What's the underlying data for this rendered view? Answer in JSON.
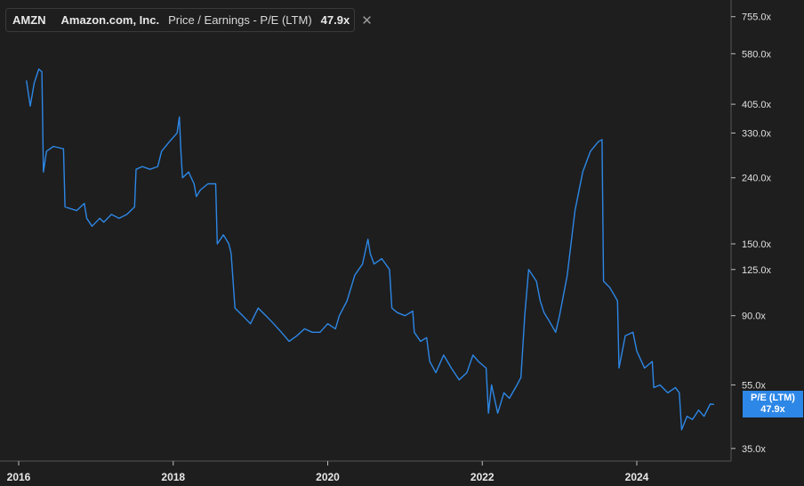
{
  "legend": {
    "ticker": "AMZN",
    "company": "Amazon.com, Inc.",
    "metric": "Price / Earnings - P/E (LTM)",
    "value": "47.9x",
    "close_icon": "close-icon"
  },
  "badge": {
    "label": "P/E (LTM)",
    "value": "47.9x"
  },
  "colors": {
    "background": "#1e1e1e",
    "line": "#2d87e6",
    "axis": "#555555"
  },
  "chart_data": {
    "type": "line",
    "scale": "log",
    "ylim": [
      32,
      850
    ],
    "xlim": [
      2016.0,
      2025.2
    ],
    "y_ticks": [
      {
        "v": 755,
        "label": "755.0x"
      },
      {
        "v": 580,
        "label": "580.0x"
      },
      {
        "v": 405,
        "label": "405.0x"
      },
      {
        "v": 330,
        "label": "330.0x"
      },
      {
        "v": 240,
        "label": "240.0x"
      },
      {
        "v": 150,
        "label": "150.0x"
      },
      {
        "v": 125,
        "label": "125.0x"
      },
      {
        "v": 90,
        "label": "90.0x"
      },
      {
        "v": 55,
        "label": "55.0x"
      },
      {
        "v": 35,
        "label": "35.0x"
      }
    ],
    "x_ticks": [
      {
        "v": 2016,
        "label": "2016"
      },
      {
        "v": 2018,
        "label": "2018"
      },
      {
        "v": 2020,
        "label": "2020"
      },
      {
        "v": 2022,
        "label": "2022"
      },
      {
        "v": 2024,
        "label": "2024"
      }
    ],
    "series": [
      {
        "points": [
          [
            2016.1,
            480
          ],
          [
            2016.15,
            400
          ],
          [
            2016.2,
            470
          ],
          [
            2016.26,
            520
          ],
          [
            2016.3,
            510
          ],
          [
            2016.32,
            250
          ],
          [
            2016.36,
            290
          ],
          [
            2016.45,
            300
          ],
          [
            2016.58,
            295
          ],
          [
            2016.6,
            195
          ],
          [
            2016.75,
            190
          ],
          [
            2016.85,
            200
          ],
          [
            2016.88,
            180
          ],
          [
            2016.95,
            170
          ],
          [
            2017.05,
            180
          ],
          [
            2017.1,
            175
          ],
          [
            2017.2,
            185
          ],
          [
            2017.3,
            180
          ],
          [
            2017.4,
            185
          ],
          [
            2017.5,
            195
          ],
          [
            2017.52,
            255
          ],
          [
            2017.6,
            260
          ],
          [
            2017.7,
            255
          ],
          [
            2017.8,
            260
          ],
          [
            2017.85,
            290
          ],
          [
            2017.95,
            310
          ],
          [
            2018.05,
            330
          ],
          [
            2018.08,
            370
          ],
          [
            2018.1,
            290
          ],
          [
            2018.12,
            240
          ],
          [
            2018.2,
            250
          ],
          [
            2018.27,
            230
          ],
          [
            2018.3,
            210
          ],
          [
            2018.35,
            220
          ],
          [
            2018.45,
            230
          ],
          [
            2018.55,
            230
          ],
          [
            2018.57,
            150
          ],
          [
            2018.65,
            160
          ],
          [
            2018.72,
            150
          ],
          [
            2018.75,
            140
          ],
          [
            2018.8,
            95
          ],
          [
            2018.9,
            90
          ],
          [
            2019.0,
            85
          ],
          [
            2019.1,
            95
          ],
          [
            2019.2,
            90
          ],
          [
            2019.3,
            85
          ],
          [
            2019.4,
            80
          ],
          [
            2019.5,
            75
          ],
          [
            2019.6,
            78
          ],
          [
            2019.7,
            82
          ],
          [
            2019.8,
            80
          ],
          [
            2019.9,
            80
          ],
          [
            2020.0,
            85
          ],
          [
            2020.1,
            82
          ],
          [
            2020.15,
            90
          ],
          [
            2020.25,
            100
          ],
          [
            2020.35,
            120
          ],
          [
            2020.45,
            130
          ],
          [
            2020.52,
            155
          ],
          [
            2020.55,
            140
          ],
          [
            2020.6,
            130
          ],
          [
            2020.7,
            135
          ],
          [
            2020.8,
            125
          ],
          [
            2020.83,
            95
          ],
          [
            2020.9,
            92
          ],
          [
            2021.0,
            90
          ],
          [
            2021.1,
            93
          ],
          [
            2021.12,
            80
          ],
          [
            2021.2,
            75
          ],
          [
            2021.28,
            77
          ],
          [
            2021.32,
            65
          ],
          [
            2021.4,
            60
          ],
          [
            2021.5,
            68
          ],
          [
            2021.6,
            62
          ],
          [
            2021.7,
            57
          ],
          [
            2021.8,
            60
          ],
          [
            2021.88,
            68
          ],
          [
            2021.95,
            65
          ],
          [
            2022.05,
            62
          ],
          [
            2022.08,
            45
          ],
          [
            2022.12,
            55
          ],
          [
            2022.2,
            45
          ],
          [
            2022.28,
            52
          ],
          [
            2022.35,
            50
          ],
          [
            2022.45,
            55
          ],
          [
            2022.5,
            58
          ],
          [
            2022.55,
            90
          ],
          [
            2022.6,
            125
          ],
          [
            2022.7,
            115
          ],
          [
            2022.75,
            100
          ],
          [
            2022.8,
            92
          ],
          [
            2022.85,
            88
          ],
          [
            2022.95,
            80
          ],
          [
            2023.0,
            90
          ],
          [
            2023.1,
            120
          ],
          [
            2023.2,
            190
          ],
          [
            2023.3,
            250
          ],
          [
            2023.4,
            290
          ],
          [
            2023.5,
            310
          ],
          [
            2023.55,
            315
          ],
          [
            2023.57,
            115
          ],
          [
            2023.65,
            110
          ],
          [
            2023.7,
            105
          ],
          [
            2023.75,
            100
          ],
          [
            2023.77,
            62
          ],
          [
            2023.85,
            78
          ],
          [
            2023.95,
            80
          ],
          [
            2024.0,
            70
          ],
          [
            2024.1,
            62
          ],
          [
            2024.2,
            65
          ],
          [
            2024.22,
            54
          ],
          [
            2024.3,
            55
          ],
          [
            2024.4,
            52
          ],
          [
            2024.5,
            54
          ],
          [
            2024.55,
            52
          ],
          [
            2024.58,
            40
          ],
          [
            2024.65,
            44
          ],
          [
            2024.72,
            43
          ],
          [
            2024.8,
            46
          ],
          [
            2024.87,
            44
          ],
          [
            2024.95,
            48
          ],
          [
            2025.0,
            47.9
          ]
        ]
      }
    ]
  }
}
